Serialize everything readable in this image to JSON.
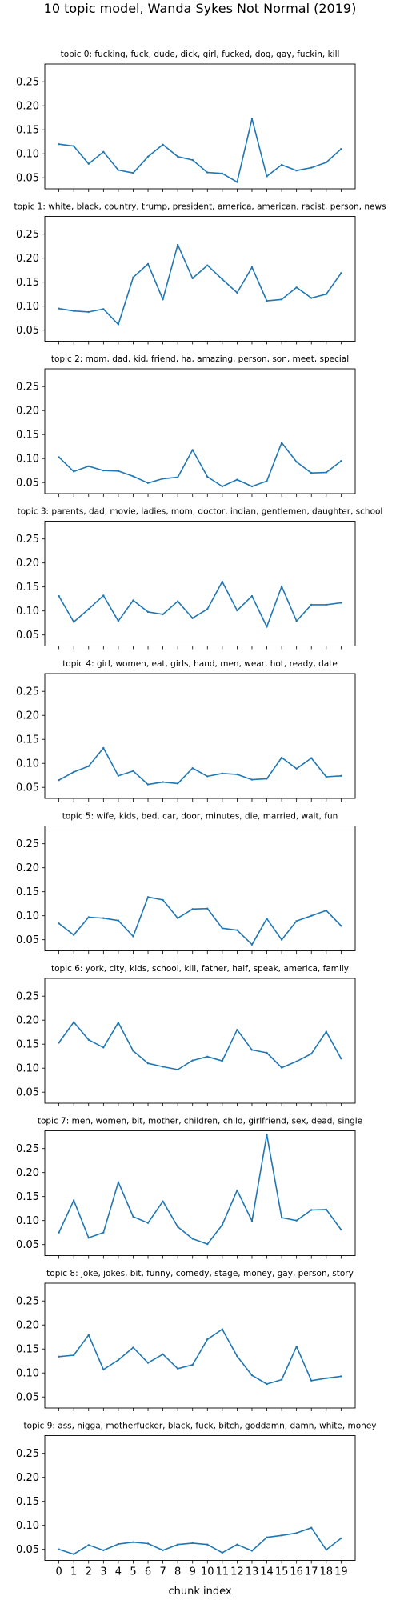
{
  "figure": {
    "suptitle": "10 topic model, Wanda Sykes Not Normal (2019)",
    "xlabel": "chunk index"
  },
  "chart_data": [
    {
      "type": "line",
      "title": "topic 0: fucking, fuck, dude, dick, girl, fucked, dog, gay, fuckin, kill",
      "x": [
        0,
        1,
        2,
        3,
        4,
        5,
        6,
        7,
        8,
        9,
        10,
        11,
        12,
        13,
        14,
        15,
        16,
        17,
        18,
        19
      ],
      "values": [
        0.12,
        0.116,
        0.079,
        0.104,
        0.066,
        0.06,
        0.094,
        0.119,
        0.094,
        0.087,
        0.061,
        0.059,
        0.041,
        0.173,
        0.053,
        0.077,
        0.065,
        0.071,
        0.082,
        0.11
      ],
      "yticks": [
        0.05,
        0.1,
        0.15,
        0.2,
        0.25
      ],
      "ylim": [
        0.027,
        0.287
      ],
      "xlim": [
        -0.95,
        19.95
      ],
      "color": "#1f77b4"
    },
    {
      "type": "line",
      "title": "topic 1: white, black, country, trump, president, america, american, racist, person, news",
      "x": [
        0,
        1,
        2,
        3,
        4,
        5,
        6,
        7,
        8,
        9,
        10,
        11,
        12,
        13,
        14,
        15,
        16,
        17,
        18,
        19
      ],
      "values": [
        0.095,
        0.09,
        0.088,
        0.094,
        0.062,
        0.16,
        0.188,
        0.114,
        0.228,
        0.158,
        0.185,
        0.156,
        0.128,
        0.181,
        0.111,
        0.114,
        0.139,
        0.117,
        0.125,
        0.169
      ],
      "yticks": [
        0.05,
        0.1,
        0.15,
        0.2,
        0.25
      ],
      "ylim": [
        0.027,
        0.287
      ],
      "xlim": [
        -0.95,
        19.95
      ],
      "color": "#1f77b4"
    },
    {
      "type": "line",
      "title": "topic 2: mom, dad, kid, friend, ha, amazing, person, son, meet, special",
      "x": [
        0,
        1,
        2,
        3,
        4,
        5,
        6,
        7,
        8,
        9,
        10,
        11,
        12,
        13,
        14,
        15,
        16,
        17,
        18,
        19
      ],
      "values": [
        0.103,
        0.073,
        0.084,
        0.075,
        0.074,
        0.063,
        0.049,
        0.058,
        0.061,
        0.118,
        0.062,
        0.042,
        0.056,
        0.042,
        0.053,
        0.133,
        0.093,
        0.07,
        0.071,
        0.095
      ],
      "yticks": [
        0.05,
        0.1,
        0.15,
        0.2,
        0.25
      ],
      "ylim": [
        0.027,
        0.287
      ],
      "xlim": [
        -0.95,
        19.95
      ],
      "color": "#1f77b4"
    },
    {
      "type": "line",
      "title": "topic 3: parents, dad, movie, ladies, mom, doctor, indian, gentlemen, daughter, school",
      "x": [
        0,
        1,
        2,
        3,
        4,
        5,
        6,
        7,
        8,
        9,
        10,
        11,
        12,
        13,
        14,
        15,
        16,
        17,
        18,
        19
      ],
      "values": [
        0.131,
        0.077,
        0.104,
        0.132,
        0.079,
        0.122,
        0.098,
        0.093,
        0.12,
        0.085,
        0.104,
        0.161,
        0.101,
        0.131,
        0.067,
        0.151,
        0.079,
        0.113,
        0.113,
        0.117
      ],
      "yticks": [
        0.05,
        0.1,
        0.15,
        0.2,
        0.25
      ],
      "ylim": [
        0.027,
        0.287
      ],
      "xlim": [
        -0.95,
        19.95
      ],
      "color": "#1f77b4"
    },
    {
      "type": "line",
      "title": "topic 4: girl, women, eat, girls, hand, men, wear, hot, ready, date",
      "x": [
        0,
        1,
        2,
        3,
        4,
        5,
        6,
        7,
        8,
        9,
        10,
        11,
        12,
        13,
        14,
        15,
        16,
        17,
        18,
        19
      ],
      "values": [
        0.065,
        0.082,
        0.094,
        0.132,
        0.074,
        0.084,
        0.056,
        0.061,
        0.058,
        0.09,
        0.073,
        0.079,
        0.077,
        0.066,
        0.068,
        0.112,
        0.089,
        0.111,
        0.072,
        0.074
      ],
      "yticks": [
        0.05,
        0.1,
        0.15,
        0.2,
        0.25
      ],
      "ylim": [
        0.027,
        0.287
      ],
      "xlim": [
        -0.95,
        19.95
      ],
      "color": "#1f77b4"
    },
    {
      "type": "line",
      "title": "topic 5: wife, kids, bed, car, door, minutes, die, married, wait, fun",
      "x": [
        0,
        1,
        2,
        3,
        4,
        5,
        6,
        7,
        8,
        9,
        10,
        11,
        12,
        13,
        14,
        15,
        16,
        17,
        18,
        19
      ],
      "values": [
        0.084,
        0.06,
        0.097,
        0.095,
        0.09,
        0.057,
        0.139,
        0.133,
        0.095,
        0.114,
        0.115,
        0.074,
        0.07,
        0.04,
        0.094,
        0.05,
        0.089,
        0.1,
        0.111,
        0.079
      ],
      "yticks": [
        0.05,
        0.1,
        0.15,
        0.2,
        0.25
      ],
      "ylim": [
        0.027,
        0.287
      ],
      "xlim": [
        -0.95,
        19.95
      ],
      "color": "#1f77b4"
    },
    {
      "type": "line",
      "title": "topic 6: york, city, kids, school, kill, father, half, speak, america, family",
      "x": [
        0,
        1,
        2,
        3,
        4,
        5,
        6,
        7,
        8,
        9,
        10,
        11,
        12,
        13,
        14,
        15,
        16,
        17,
        18,
        19
      ],
      "values": [
        0.153,
        0.196,
        0.159,
        0.143,
        0.195,
        0.136,
        0.11,
        0.103,
        0.097,
        0.116,
        0.124,
        0.115,
        0.18,
        0.138,
        0.132,
        0.101,
        0.114,
        0.13,
        0.176,
        0.12
      ],
      "yticks": [
        0.05,
        0.1,
        0.15,
        0.2,
        0.25
      ],
      "ylim": [
        0.027,
        0.287
      ],
      "xlim": [
        -0.95,
        19.95
      ],
      "color": "#1f77b4"
    },
    {
      "type": "line",
      "title": "topic 7: men, women, bit, mother, children, child, girlfriend, sex, dead, single",
      "x": [
        0,
        1,
        2,
        3,
        4,
        5,
        6,
        7,
        8,
        9,
        10,
        11,
        12,
        13,
        14,
        15,
        16,
        17,
        18,
        19
      ],
      "values": [
        0.075,
        0.142,
        0.064,
        0.075,
        0.18,
        0.108,
        0.095,
        0.14,
        0.087,
        0.062,
        0.051,
        0.091,
        0.163,
        0.099,
        0.279,
        0.106,
        0.1,
        0.122,
        0.123,
        0.081
      ],
      "yticks": [
        0.05,
        0.1,
        0.15,
        0.2,
        0.25
      ],
      "ylim": [
        0.027,
        0.287
      ],
      "xlim": [
        -0.95,
        19.95
      ],
      "color": "#1f77b4"
    },
    {
      "type": "line",
      "title": "topic 8: joke, jokes, bit, funny, comedy, stage, money, gay, person, story",
      "x": [
        0,
        1,
        2,
        3,
        4,
        5,
        6,
        7,
        8,
        9,
        10,
        11,
        12,
        13,
        14,
        15,
        16,
        17,
        18,
        19
      ],
      "values": [
        0.134,
        0.137,
        0.179,
        0.107,
        0.127,
        0.153,
        0.121,
        0.139,
        0.109,
        0.117,
        0.17,
        0.191,
        0.135,
        0.095,
        0.077,
        0.086,
        0.155,
        0.084,
        0.089,
        0.093
      ],
      "yticks": [
        0.05,
        0.1,
        0.15,
        0.2,
        0.25
      ],
      "ylim": [
        0.027,
        0.287
      ],
      "xlim": [
        -0.95,
        19.95
      ],
      "color": "#1f77b4"
    },
    {
      "type": "line",
      "title": "topic 9: ass, nigga, motherfucker, black, fuck, bitch, goddamn, damn, white, money",
      "x": [
        0,
        1,
        2,
        3,
        4,
        5,
        6,
        7,
        8,
        9,
        10,
        11,
        12,
        13,
        14,
        15,
        16,
        17,
        18,
        19
      ],
      "values": [
        0.05,
        0.04,
        0.059,
        0.048,
        0.061,
        0.065,
        0.062,
        0.048,
        0.06,
        0.063,
        0.06,
        0.043,
        0.06,
        0.047,
        0.075,
        0.079,
        0.084,
        0.095,
        0.049,
        0.073
      ],
      "yticks": [
        0.05,
        0.1,
        0.15,
        0.2,
        0.25
      ],
      "ylim": [
        0.027,
        0.287
      ],
      "xlim": [
        -0.95,
        19.95
      ],
      "color": "#1f77b4"
    }
  ]
}
